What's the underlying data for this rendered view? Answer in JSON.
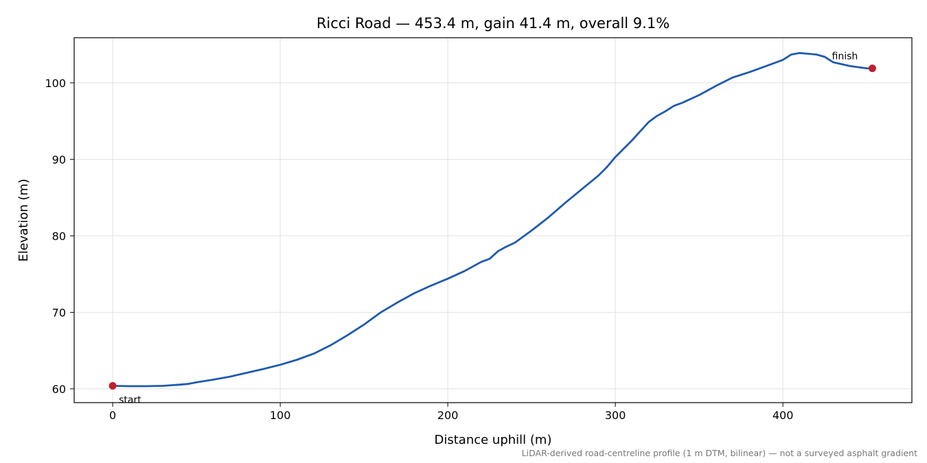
{
  "chart_data": {
    "type": "line",
    "title": "Ricci Road — 453.4 m, gain 41.4 m, overall 9.1%",
    "xlabel": "Distance uphill (m)",
    "ylabel": "Elevation (m)",
    "xlim": [
      -23,
      477
    ],
    "ylim": [
      58.2,
      105.9
    ],
    "xticks": [
      0,
      100,
      200,
      300,
      400
    ],
    "yticks": [
      60,
      70,
      80,
      90,
      100
    ],
    "grid": true,
    "footnote": "LiDAR-derived road-centreline profile (1 m DTM, bilinear) — not a surveyed asphalt gradient",
    "colors": {
      "line": "#1f5aad",
      "markers": "#c0212e",
      "grid": "#e0e0e0"
    },
    "series": [
      {
        "x": [
          0,
          10,
          20,
          30,
          40,
          45,
          50,
          60,
          70,
          80,
          90,
          100,
          110,
          120,
          130,
          140,
          150,
          160,
          170,
          180,
          190,
          200,
          210,
          220,
          225,
          230,
          235,
          240,
          250,
          260,
          270,
          280,
          290,
          295,
          300,
          310,
          315,
          320,
          325,
          330,
          335,
          340,
          350,
          360,
          370,
          380,
          390,
          400,
          405,
          410,
          415,
          420,
          425,
          430,
          440,
          450,
          453.4
        ],
        "y": [
          60.4,
          60.35,
          60.35,
          60.4,
          60.55,
          60.65,
          60.85,
          61.2,
          61.6,
          62.1,
          62.6,
          63.15,
          63.8,
          64.6,
          65.7,
          67.0,
          68.4,
          70.0,
          71.3,
          72.5,
          73.5,
          74.4,
          75.4,
          76.6,
          77.0,
          78.0,
          78.6,
          79.1,
          80.7,
          82.4,
          84.3,
          86.1,
          87.9,
          89.0,
          90.3,
          92.5,
          93.7,
          94.9,
          95.7,
          96.3,
          97.0,
          97.4,
          98.4,
          99.6,
          100.7,
          101.4,
          102.2,
          103.0,
          103.7,
          103.9,
          103.8,
          103.7,
          103.4,
          102.7,
          102.2,
          101.9,
          101.9
        ]
      }
    ],
    "annotations": [
      {
        "label": "start",
        "x": 0,
        "y": 60.4
      },
      {
        "label": "finish",
        "x": 453.4,
        "y": 101.9
      }
    ]
  }
}
